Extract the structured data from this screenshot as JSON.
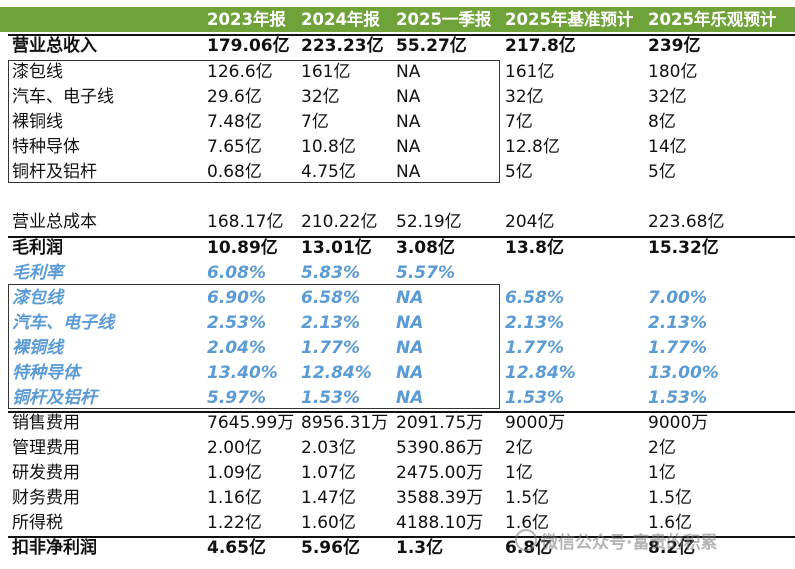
{
  "header": [
    "",
    "2023年报",
    "2024年报",
    "2025一季报",
    "2025年基准预计",
    "2025年乐观预计"
  ],
  "rows": [
    [
      "营业总收入",
      "179.06亿",
      "223.23亿",
      "55.27亿",
      "217.8亿",
      "239亿"
    ],
    [
      "漆包线",
      "126.6亿",
      "161亿",
      "NA",
      "161亿",
      "180亿"
    ],
    [
      "汽车、电子线",
      "29.6亿",
      "32亿",
      "NA",
      "32亿",
      "32亿"
    ],
    [
      "裸铜线",
      "7.48亿",
      "7亿",
      "NA",
      "7亿",
      "8亿"
    ],
    [
      "特种导体",
      "7.65亿",
      "10.8亿",
      "NA",
      "12.8亿",
      "14亿"
    ],
    [
      "铜杆及铝杆",
      "0.68亿",
      "4.75亿",
      "NA",
      "5亿",
      "5亿"
    ],
    [
      "",
      "",
      "",
      "",
      "",
      ""
    ],
    [
      "营业总成本",
      "168.17亿",
      "210.22亿",
      "52.19亿",
      "204亿",
      "223.68亿"
    ],
    [
      "毛利润",
      "10.89亿",
      "13.01亿",
      "3.08亿",
      "13.8亿",
      "15.32亿"
    ],
    [
      "毛利率",
      "6.08%",
      "5.83%",
      "5.57%",
      "",
      ""
    ],
    [
      "漆包线",
      "6.90%",
      "6.58%",
      "NA",
      "6.58%",
      "7.00%"
    ],
    [
      "汽车、电子线",
      "2.53%",
      "2.13%",
      "NA",
      "2.13%",
      "2.13%"
    ],
    [
      "裸铜线",
      "2.04%",
      "1.77%",
      "NA",
      "1.77%",
      "1.77%"
    ],
    [
      "特种导体",
      "13.40%",
      "12.84%",
      "NA",
      "12.84%",
      "13.00%"
    ],
    [
      "铜杆及铝杆",
      "5.97%",
      "1.53%",
      "NA",
      "1.53%",
      "1.53%"
    ],
    [
      "销售费用",
      "7645.99万",
      "8956.31万",
      "2091.75万",
      "9000万",
      "9000万"
    ],
    [
      "管理费用",
      "2.00亿",
      "2.03亿",
      "5390.86万",
      "2亿",
      "2亿"
    ],
    [
      "研发费用",
      "1.09亿",
      "1.07亿",
      "2475.00万",
      "1亿",
      "1亿"
    ],
    [
      "财务费用",
      "1.16亿",
      "1.47亿",
      "3588.39万",
      "1.5亿",
      "1.5亿"
    ],
    [
      "所得税",
      "1.22亿",
      "1.60亿",
      "4188.10万",
      "1.6亿",
      "1.6亿"
    ],
    [
      "扣非净利润",
      "4.65亿",
      "5.96亿",
      "1.3亿",
      "6.8亿",
      "8.2亿"
    ]
  ],
  "watermark": "微信公众号·富贵的积累"
}
